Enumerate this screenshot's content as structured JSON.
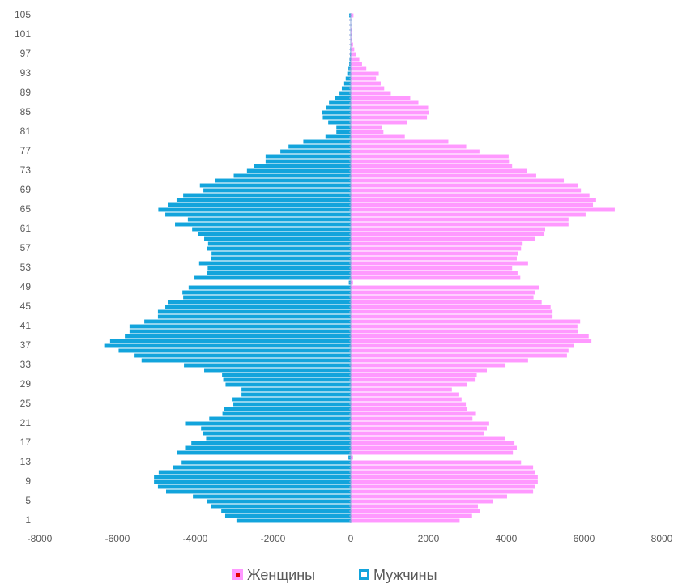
{
  "chart_data": {
    "type": "pyramid",
    "categories": [
      "1",
      null,
      null,
      null,
      "5",
      null,
      null,
      null,
      "9",
      null,
      null,
      null,
      "13",
      null,
      null,
      null,
      "17",
      null,
      null,
      null,
      "21",
      null,
      null,
      null,
      "25",
      null,
      null,
      null,
      "29",
      null,
      null,
      null,
      "33",
      null,
      null,
      null,
      "37",
      null,
      null,
      null,
      "41",
      null,
      null,
      null,
      "45",
      null,
      null,
      null,
      "49",
      null,
      null,
      null,
      "53",
      null,
      null,
      null,
      "57",
      null,
      null,
      null,
      "61",
      null,
      null,
      null,
      "65",
      null,
      null,
      null,
      "69",
      null,
      null,
      null,
      "73",
      null,
      null,
      null,
      "77",
      null,
      null,
      null,
      "81",
      null,
      null,
      null,
      "85",
      null,
      null,
      null,
      "89",
      null,
      null,
      null,
      "93",
      null,
      null,
      null,
      "97",
      null,
      null,
      null,
      "101",
      null,
      null,
      null,
      "105"
    ],
    "series": [
      {
        "name": "Женщины",
        "color": "#ff99ff",
        "values": [
          2800,
          3120,
          3330,
          3270,
          3650,
          4020,
          4690,
          4730,
          4810,
          4810,
          4730,
          4690,
          4380,
          60,
          4170,
          4270,
          4210,
          3960,
          3430,
          3500,
          3560,
          3130,
          3220,
          2980,
          2960,
          2850,
          2790,
          2600,
          3000,
          3210,
          3240,
          3500,
          3980,
          4560,
          5560,
          5600,
          5730,
          6190,
          6120,
          5850,
          5830,
          5900,
          5190,
          5190,
          5140,
          4910,
          4700,
          4750,
          4850,
          60,
          4360,
          4290,
          4150,
          4560,
          4270,
          4310,
          4380,
          4420,
          4730,
          4980,
          5000,
          5600,
          5600,
          6040,
          6790,
          6230,
          6310,
          6140,
          5920,
          5850,
          5480,
          4770,
          4540,
          4150,
          4070,
          4060,
          3310,
          2970,
          2510,
          1390,
          840,
          800,
          1450,
          1960,
          2020,
          1990,
          1740,
          1530,
          1030,
          860,
          770,
          650,
          720,
          400,
          290,
          220,
          140,
          90,
          60,
          40,
          30,
          20,
          12,
          8,
          70
        ]
      },
      {
        "name": "Мужчины",
        "color": "#12a4dc",
        "values": [
          -2940,
          -3230,
          -3330,
          -3600,
          -3700,
          -4060,
          -4750,
          -4960,
          -5060,
          -5060,
          -4940,
          -4580,
          -4350,
          -60,
          -4460,
          -4240,
          -4100,
          -3720,
          -3810,
          -3850,
          -4240,
          -3640,
          -3300,
          -3270,
          -3020,
          -3040,
          -2810,
          -2810,
          -3220,
          -3280,
          -3310,
          -3770,
          -4290,
          -5380,
          -5560,
          -5970,
          -6320,
          -6190,
          -5810,
          -5690,
          -5690,
          -5310,
          -4960,
          -4960,
          -4770,
          -4690,
          -4310,
          -4330,
          -4170,
          -50,
          -4020,
          -3700,
          -3680,
          -3900,
          -3600,
          -3580,
          -3690,
          -3670,
          -3770,
          -3920,
          -4080,
          -4520,
          -4190,
          -4770,
          -4950,
          -4690,
          -4480,
          -4310,
          -3790,
          -3880,
          -3500,
          -3010,
          -2670,
          -2480,
          -2190,
          -2190,
          -1810,
          -1600,
          -1220,
          -650,
          -370,
          -370,
          -580,
          -720,
          -750,
          -640,
          -560,
          -400,
          -290,
          -230,
          -170,
          -130,
          -90,
          -60,
          -40,
          -30,
          -20,
          -15,
          -10,
          -8,
          -5,
          -4,
          -3,
          -2,
          -40
        ]
      }
    ],
    "xlim": [
      -8000,
      8000
    ],
    "xticks": [
      -8000,
      -6000,
      -4000,
      -2000,
      0,
      2000,
      4000,
      6000,
      8000
    ],
    "legend": "bottom"
  }
}
